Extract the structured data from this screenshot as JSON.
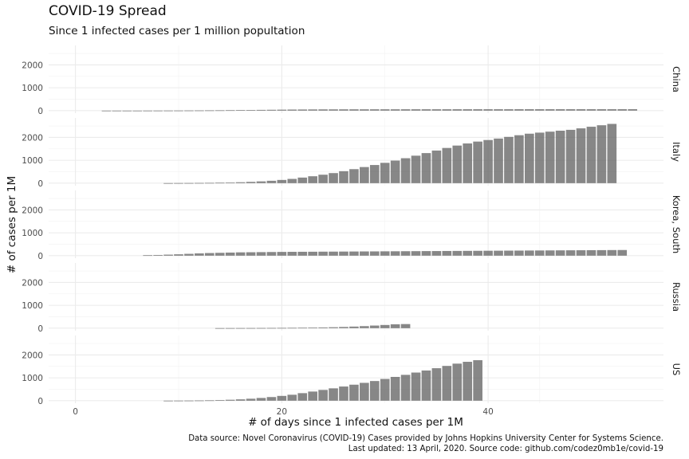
{
  "chart_data": {
    "type": "bar",
    "title": "COVID-19 Spread",
    "subtitle": "Since 1 infected cases per 1 million popultation",
    "xlabel": "# of days since 1 infected cases per 1M",
    "ylabel": "# of cases per 1M",
    "caption_lines": [
      "Data source: Novel Coronavirus (COVID-19) Cases provided by Johns Hopkins University Center for Systems Science.",
      "Last updated: 13 April, 2020. Source code: github.com/codez0mb1e/covid-19"
    ],
    "xlim": [
      -2.6,
      57
    ],
    "ylim": [
      -110,
      2850
    ],
    "x_ticks": [
      0,
      20,
      40
    ],
    "x_tick_labels": [
      "0",
      "20",
      "40"
    ],
    "y_ticks": [
      0,
      1000,
      2000
    ],
    "y_tick_labels": [
      "0",
      "1000",
      "2000"
    ],
    "bar_color": "#595959",
    "grid": true,
    "facets": [
      {
        "name": "China",
        "x_start": 3,
        "values": [
          1,
          1,
          1,
          1,
          2,
          3,
          4,
          5,
          7,
          9,
          12,
          15,
          19,
          24,
          28,
          33,
          38,
          43,
          48,
          51,
          54,
          56,
          57,
          58,
          59,
          59,
          60,
          60,
          60,
          61,
          61,
          61,
          61,
          61,
          62,
          62,
          62,
          62,
          62,
          62,
          63,
          63,
          63,
          63,
          63,
          63,
          63,
          63,
          63,
          63,
          64,
          64
        ]
      },
      {
        "name": "Italy",
        "x_start": 9,
        "values": [
          2,
          4,
          6,
          9,
          13,
          19,
          28,
          40,
          56,
          77,
          104,
          140,
          186,
          244,
          302,
          369,
          440,
          523,
          612,
          704,
          793,
          888,
          986,
          1090,
          1201,
          1314,
          1425,
          1538,
          1643,
          1735,
          1817,
          1885,
          1950,
          2022,
          2095,
          2162,
          2208,
          2251,
          2293,
          2331,
          2395,
          2465,
          2530,
          2590
        ]
      },
      {
        "name": "Korea, South",
        "x_start": 7,
        "values": [
          20,
          30,
          45,
          60,
          80,
          100,
          115,
          125,
          135,
          145,
          150,
          155,
          160,
          165,
          168,
          170,
          172,
          175,
          177,
          180,
          182,
          185,
          187,
          190,
          192,
          195,
          197,
          200,
          202,
          205,
          207,
          210,
          212,
          215,
          217,
          220,
          222,
          225,
          227,
          230,
          232,
          235,
          237,
          240,
          242,
          245,
          247
        ]
      },
      {
        "name": "Russia",
        "x_start": 14,
        "values": [
          3,
          4,
          5,
          6,
          8,
          10,
          13,
          16,
          20,
          26,
          33,
          42,
          54,
          70,
          90,
          115,
          140,
          170,
          180
        ]
      },
      {
        "name": "US",
        "x_start": 9,
        "values": [
          2,
          4,
          6,
          10,
          16,
          26,
          41,
          60,
          86,
          120,
          160,
          210,
          260,
          330,
          400,
          470,
          540,
          620,
          700,
          780,
          860,
          950,
          1040,
          1130,
          1230,
          1320,
          1420,
          1520,
          1620,
          1700,
          1770
        ]
      }
    ]
  }
}
